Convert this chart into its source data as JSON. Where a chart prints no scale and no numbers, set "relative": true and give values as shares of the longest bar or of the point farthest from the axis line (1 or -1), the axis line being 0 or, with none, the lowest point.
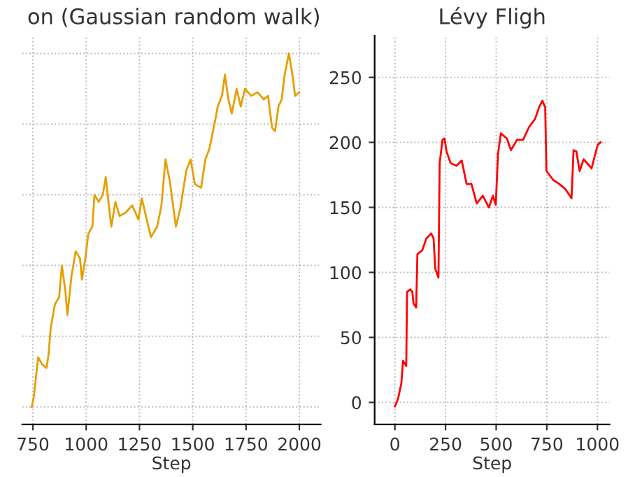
{
  "chart_data": [
    {
      "type": "line",
      "title": "on (Gaussian random walk)",
      "xlabel": "Step",
      "relative": true,
      "grid": true,
      "tick_labels": "x",
      "xlim": [
        700,
        2100
      ],
      "xticks": [
        750,
        1000,
        1250,
        1500,
        1750,
        2000
      ],
      "series": [
        {
          "color": "#e69f00",
          "x": [
            745,
            755,
            769,
            775,
            794,
            814,
            824,
            833,
            853,
            873,
            886,
            902,
            912,
            931,
            951,
            971,
            980,
            996,
            1010,
            1029,
            1039,
            1059,
            1078,
            1092,
            1108,
            1118,
            1137,
            1157,
            1186,
            1216,
            1245,
            1261,
            1284,
            1304,
            1333,
            1353,
            1372,
            1392,
            1421,
            1441,
            1470,
            1490,
            1510,
            1539,
            1559,
            1578,
            1608,
            1617,
            1637,
            1651,
            1667,
            1683,
            1706,
            1725,
            1745,
            1774,
            1804,
            1833,
            1853,
            1872,
            1886,
            1902,
            1917,
            1931,
            1951,
            1970,
            1980,
            2000
          ],
          "values": [
            0,
            0.03,
            0.11,
            0.14,
            0.12,
            0.11,
            0.15,
            0.22,
            0.29,
            0.31,
            0.4,
            0.33,
            0.26,
            0.37,
            0.44,
            0.42,
            0.36,
            0.42,
            0.49,
            0.51,
            0.6,
            0.58,
            0.6,
            0.65,
            0.56,
            0.51,
            0.58,
            0.54,
            0.55,
            0.57,
            0.53,
            0.59,
            0.53,
            0.48,
            0.51,
            0.57,
            0.7,
            0.64,
            0.51,
            0.56,
            0.67,
            0.7,
            0.63,
            0.62,
            0.7,
            0.73,
            0.82,
            0.85,
            0.88,
            0.94,
            0.87,
            0.83,
            0.9,
            0.85,
            0.9,
            0.88,
            0.89,
            0.87,
            0.88,
            0.79,
            0.78,
            0.85,
            0.87,
            0.94,
            1.0,
            0.93,
            0.88,
            0.89
          ]
        }
      ]
    },
    {
      "type": "line",
      "title": "Lévy Fligh",
      "xlabel": "Step",
      "grid": true,
      "xlim": [
        -100,
        1060
      ],
      "ylim": [
        -17,
        282
      ],
      "xticks": [
        0,
        250,
        500,
        750,
        1000
      ],
      "yticks": [
        0,
        50,
        100,
        150,
        200,
        250
      ],
      "series": [
        {
          "color": "#ff0000",
          "x": [
            0,
            16,
            32,
            40,
            56,
            60,
            76,
            86,
            92,
            105,
            111,
            135,
            155,
            179,
            191,
            199,
            215,
            221,
            235,
            245,
            255,
            275,
            304,
            330,
            354,
            378,
            404,
            434,
            464,
            484,
            498,
            509,
            523,
            553,
            573,
            603,
            633,
            663,
            692,
            712,
            728,
            742,
            748,
            782,
            812,
            842,
            872,
            882,
            896,
            912,
            932,
            971,
            1001,
            1015
          ],
          "values": [
            -3,
            3,
            15,
            32,
            28,
            85,
            87,
            85,
            76,
            73,
            114,
            117,
            126,
            130,
            126,
            103,
            96,
            184,
            202,
            203,
            193,
            184,
            182,
            186,
            168,
            168,
            153,
            159,
            150,
            159,
            152,
            191,
            207,
            203,
            194,
            202,
            202,
            212,
            218,
            227,
            232,
            227,
            178,
            171,
            168,
            164,
            157,
            194,
            193,
            178,
            187,
            180,
            198,
            200
          ]
        }
      ]
    }
  ]
}
